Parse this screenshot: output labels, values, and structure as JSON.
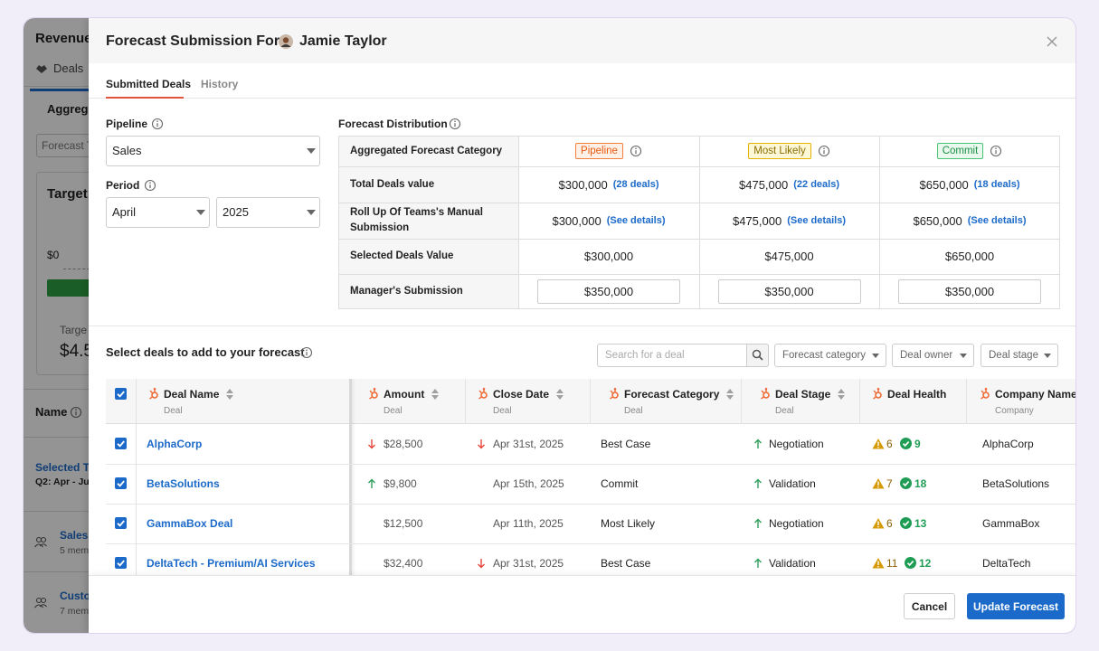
{
  "background": {
    "title": "Revenue",
    "tab": "Deals",
    "subtab": "Aggrega",
    "filter": "Forecast T",
    "card_title": "Target",
    "axis_start": "$0",
    "target_label": "Targe",
    "target_value": "$4.5",
    "name_header": "Name",
    "selected_team": "Selected Te",
    "period": "Q2: Apr - Ju",
    "teams": [
      {
        "name": "Sales",
        "members": "5 mem"
      },
      {
        "name": "Custo",
        "members": "7 mem"
      }
    ]
  },
  "modal": {
    "title": "Forecast Submission For:",
    "user": "Jamie Taylor",
    "tabs": [
      "Submitted Deals",
      "History"
    ],
    "pipeline_label": "Pipeline",
    "pipeline_value": "Sales",
    "period_label": "Period",
    "period_month": "April",
    "period_year": "2025",
    "distribution": {
      "title": "Forecast Distribution",
      "header": "Aggregated Forecast Category",
      "columns": [
        {
          "name": "Pipeline",
          "color": "#e8590c",
          "border": "#f5803e",
          "bg": "#fff1e8"
        },
        {
          "name": "Most Likely",
          "color": "#8a6d00",
          "border": "#e3b300",
          "bg": "#fff8d6"
        },
        {
          "name": "Commit",
          "color": "#1a8f44",
          "border": "#4cc477",
          "bg": "#e9f9ee"
        }
      ],
      "rows": [
        {
          "label": "Total Deals value",
          "values": [
            "$300,000",
            "$475,000",
            "$650,000"
          ],
          "links": [
            "(28 deals)",
            "(22 deals)",
            "(18 deals)"
          ]
        },
        {
          "label": "Roll Up Of Teams's Manual Submission",
          "values": [
            "$300,000",
            "$475,000",
            "$650,000"
          ],
          "links": [
            "(See details)",
            "(See details)",
            "(See details)"
          ]
        },
        {
          "label": "Selected Deals Value",
          "values": [
            "$300,000",
            "$475,000",
            "$650,000"
          ]
        },
        {
          "label": "Manager's Submission",
          "inputs": [
            "$350,000",
            "$350,000",
            "$350,000"
          ]
        }
      ]
    },
    "deals": {
      "title": "Select deals to add to your forecast",
      "search_placeholder": "Search for a deal",
      "filters": [
        "Forecast category",
        "Deal owner",
        "Deal stage"
      ],
      "columns": [
        {
          "name": "Deal Name",
          "sub": "Deal",
          "sortable": true
        },
        {
          "name": "Amount",
          "sub": "Deal",
          "sortable": true
        },
        {
          "name": "Close Date",
          "sub": "Deal",
          "sortable": true
        },
        {
          "name": "Forecast Category",
          "sub": "Deal",
          "sortable": true
        },
        {
          "name": "Deal Stage",
          "sub": "Deal",
          "sortable": true
        },
        {
          "name": "Deal Health",
          "sortable": false
        },
        {
          "name": "Company Name",
          "sub": "Company",
          "sortable": false
        }
      ],
      "rows": [
        {
          "name": "AlphaCorp",
          "amount": "$28,500",
          "amount_trend": "down",
          "close_date": "Apr 31st, 2025",
          "close_trend": "down",
          "category": "Best Case",
          "stage": "Negotiation",
          "stage_trend": "up",
          "warnings": 6,
          "healthy": 9,
          "company": "AlphaCorp"
        },
        {
          "name": "BetaSolutions",
          "amount": "$9,800",
          "amount_trend": "up",
          "close_date": "Apr 15th, 2025",
          "close_trend": null,
          "category": "Commit",
          "stage": "Validation",
          "stage_trend": "up",
          "warnings": 7,
          "healthy": 18,
          "company": "BetaSolutions"
        },
        {
          "name": "GammaBox Deal",
          "amount": "$12,500",
          "amount_trend": null,
          "close_date": "Apr 11th, 2025",
          "close_trend": null,
          "category": "Most Likely",
          "stage": "Negotiation",
          "stage_trend": "up",
          "warnings": 6,
          "healthy": 13,
          "company": "GammaBox"
        },
        {
          "name": "DeltaTech - Premium/AI Services",
          "amount": "$32,400",
          "amount_trend": null,
          "close_date": "Apr 31st, 2025",
          "close_trend": "down",
          "category": "Best Case",
          "stage": "Validation",
          "stage_trend": "up",
          "warnings": 11,
          "healthy": 12,
          "company": "DeltaTech"
        }
      ]
    },
    "buttons": [
      "Cancel",
      "Update Forecast"
    ]
  }
}
